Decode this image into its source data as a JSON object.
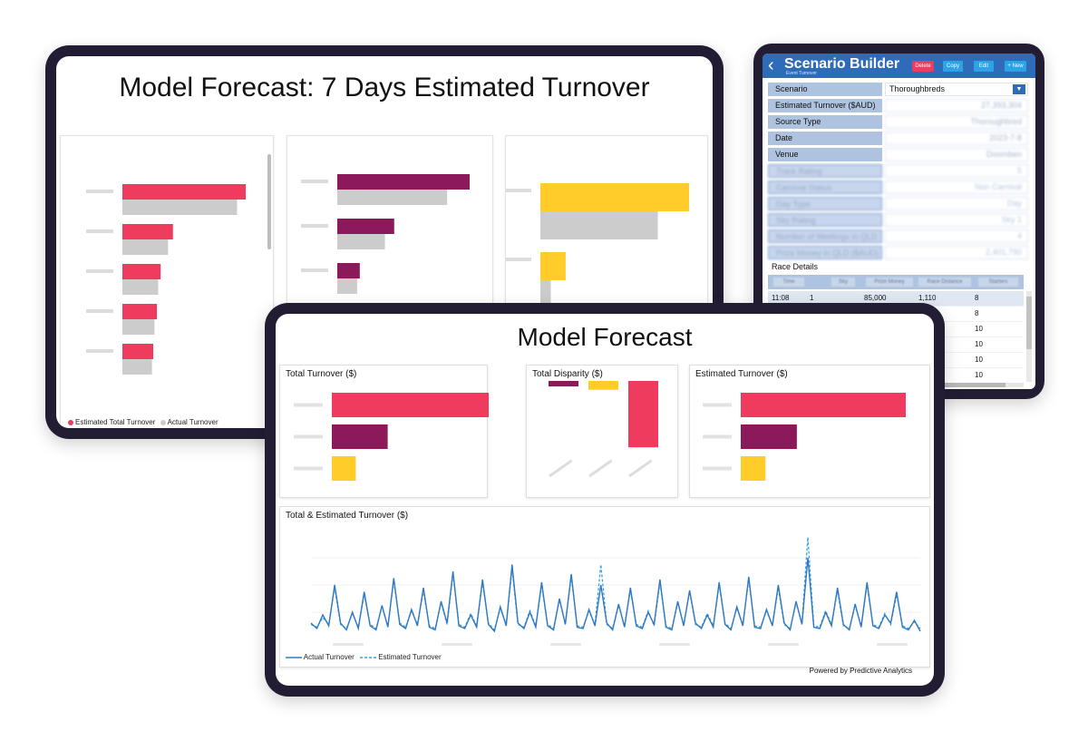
{
  "tablet1": {
    "title": "Model Forecast: 7 Days Estimated Turnover",
    "legend": {
      "estimated": "Estimated Total Turnover",
      "actual": "Actual Turnover"
    },
    "colors": {
      "estimated": "#ef3b5d",
      "actual": "#cccccc",
      "series2": "#8c1a5a",
      "series3": "#ffcc29"
    }
  },
  "tablet2": {
    "title": "Scenario Builder",
    "subtitle": "Event Turnover",
    "buttons": {
      "delete": "Delete",
      "copy": "Copy",
      "edit": "Edit",
      "new": "+ New"
    },
    "fields": [
      {
        "label": "Scenario",
        "value": "Thoroughbreds"
      },
      {
        "label": "Estimated Turnover ($AUD)",
        "value": "27,393,304"
      },
      {
        "label": "Source Type",
        "value": "Thoroughbred"
      },
      {
        "label": "Date",
        "value": "2023-7-8"
      },
      {
        "label": "Venue",
        "value": "Doomben"
      },
      {
        "label": "Track Rating",
        "value": "5"
      },
      {
        "label": "Carnival Status",
        "value": "Non Carnival"
      },
      {
        "label": "Day Type",
        "value": "Day"
      },
      {
        "label": "Sky Rating",
        "value": "Sky 1"
      },
      {
        "label": "Number of Meetings in QLD",
        "value": "4"
      },
      {
        "label": "Prize Money in QLD ($AUD)",
        "value": "2,401,790"
      }
    ],
    "race_details_label": "Race Details",
    "table_headers": [
      "Time",
      "",
      "Sky",
      "Prize Money",
      "Race Distance",
      "Starters"
    ],
    "rows": [
      {
        "time": "11:08",
        "num": "1",
        "prize": "85,000",
        "distance": "1,110",
        "starters": "8"
      },
      {
        "time": "",
        "num": "",
        "prize": "",
        "distance": "",
        "starters": "8"
      },
      {
        "time": "",
        "num": "",
        "prize": "",
        "distance": "",
        "starters": "10"
      },
      {
        "time": "",
        "num": "",
        "prize": "",
        "distance": "",
        "starters": "10"
      },
      {
        "time": "",
        "num": "",
        "prize": "",
        "distance": "",
        "starters": "10"
      },
      {
        "time": "",
        "num": "",
        "prize": "",
        "distance": "",
        "starters": "10"
      }
    ]
  },
  "tablet3": {
    "title": "Model Forecast",
    "footer": "Powered by Predictive Analytics",
    "cards": {
      "total_turnover": "Total  Turnover ($)",
      "total_disparity": "Total Disparity ($)",
      "estimated_turnover": "Estimated  Turnover ($)",
      "line_chart": "Total & Estimated Turnover ($)"
    },
    "line_legend": {
      "actual": "Actual Turnover",
      "estimated": "Estimated Turnover"
    },
    "colors": {
      "line": "#2f79c2",
      "estimated_line": "#3ba0e0"
    }
  },
  "chart_data": [
    {
      "type": "bar",
      "orientation": "horizontal",
      "title": "",
      "series": [
        {
          "name": "Estimated Total Turnover",
          "values": [
            100,
            41,
            31,
            28,
            25
          ]
        },
        {
          "name": "Actual Turnover",
          "values": [
            93,
            37,
            29,
            26,
            24
          ]
        }
      ],
      "categories": [
        "",
        "",
        "",
        "",
        ""
      ]
    },
    {
      "type": "bar",
      "orientation": "horizontal",
      "title": "",
      "series": [
        {
          "values": [
            100,
            43,
            17,
            14
          ]
        },
        {
          "values": [
            83,
            36,
            15,
            0
          ]
        }
      ],
      "categories": [
        "",
        "",
        "",
        ""
      ]
    },
    {
      "type": "bar",
      "orientation": "horizontal",
      "title": "",
      "series": [
        {
          "values": [
            100,
            17
          ]
        },
        {
          "values": [
            79,
            7
          ]
        }
      ],
      "categories": [
        "",
        ""
      ]
    },
    {
      "type": "bar",
      "orientation": "horizontal",
      "title": "Total  Turnover ($)",
      "categories": [
        "",
        "",
        ""
      ],
      "values": [
        100,
        35,
        15
      ],
      "colors": [
        "#ef3b5d",
        "#8c1a5a",
        "#ffcc29"
      ]
    },
    {
      "type": "bar",
      "orientation": "vertical",
      "title": "Total Disparity ($)",
      "categories": [
        "",
        "",
        ""
      ],
      "values": [
        -5,
        -8,
        -60
      ],
      "colors": [
        "#8c1a5a",
        "#ffcc29",
        "#ef3b5d"
      ]
    },
    {
      "type": "bar",
      "orientation": "horizontal",
      "title": "Estimated  Turnover ($)",
      "categories": [
        "",
        "",
        ""
      ],
      "values": [
        100,
        34,
        15
      ],
      "colors": [
        "#ef3b5d",
        "#8c1a5a",
        "#ffcc29"
      ]
    },
    {
      "type": "line",
      "title": "Total & Estimated Turnover ($)",
      "series": [
        {
          "name": "Actual Turnover",
          "values": [
            12,
            8,
            18,
            10,
            40,
            12,
            7,
            20,
            8,
            35,
            10,
            7,
            25,
            9,
            45,
            11,
            8,
            22,
            10,
            38,
            9,
            7,
            28,
            12,
            50,
            10,
            8,
            18,
            9,
            44,
            11,
            6,
            24,
            10,
            55,
            12,
            8,
            20,
            9,
            42,
            10,
            7,
            30,
            11,
            48,
            9,
            8,
            22,
            10,
            40,
            12,
            7,
            26,
            9,
            38,
            10,
            8,
            20,
            11,
            44,
            9,
            7,
            28,
            10,
            36,
            12,
            8,
            18,
            9,
            42,
            11,
            7,
            24,
            10,
            46,
            9,
            8,
            22,
            10,
            40,
            12,
            7,
            28,
            11,
            60,
            9,
            8,
            20,
            10,
            38,
            11,
            7,
            26,
            9,
            42,
            10,
            8,
            18,
            12,
            35,
            9,
            7,
            14,
            6
          ]
        },
        {
          "name": "Estimated Turnover",
          "values": [
            11,
            9,
            16,
            11,
            38,
            11,
            8,
            19,
            9,
            33,
            11,
            8,
            24,
            10,
            43,
            12,
            9,
            21,
            11,
            36,
            10,
            8,
            27,
            11,
            48,
            11,
            9,
            19,
            10,
            42,
            12,
            7,
            23,
            11,
            52,
            11,
            9,
            21,
            10,
            40,
            11,
            8,
            29,
            12,
            46,
            10,
            9,
            21,
            11,
            55,
            11,
            8,
            25,
            10,
            36,
            11,
            9,
            21,
            10,
            42,
            10,
            8,
            27,
            11,
            35,
            11,
            9,
            19,
            10,
            40,
            12,
            8,
            23,
            11,
            44,
            10,
            9,
            21,
            11,
            38,
            11,
            8,
            27,
            12,
            75,
            10,
            9,
            21,
            11,
            36,
            10,
            8,
            25,
            10,
            40,
            11,
            9,
            19,
            11,
            33,
            10,
            8,
            13,
            8
          ]
        }
      ]
    }
  ]
}
